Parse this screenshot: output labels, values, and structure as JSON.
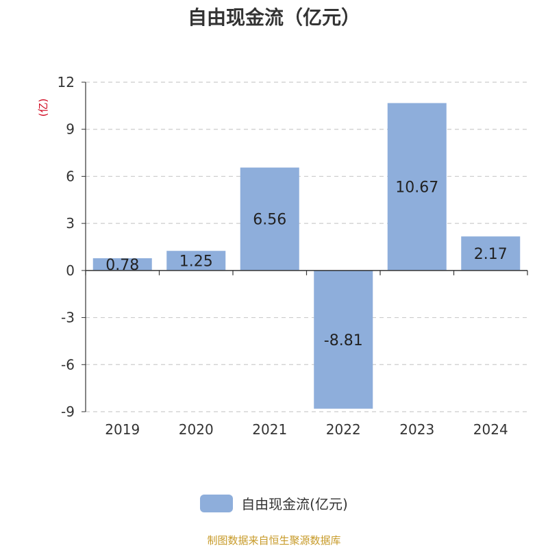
{
  "chart_data": {
    "type": "bar",
    "title": "自由现金流（亿元）",
    "ylabel": "(亿)",
    "categories": [
      "2019",
      "2020",
      "2021",
      "2022",
      "2023",
      "2024"
    ],
    "series": [
      {
        "name": "自由现金流(亿元)",
        "values": [
          0.78,
          1.25,
          6.56,
          -8.81,
          10.67,
          2.17
        ]
      }
    ],
    "data_labels": [
      "0.78",
      "1.25",
      "6.56",
      "-8.81",
      "10.67",
      "2.17"
    ],
    "ylim": [
      -9,
      12
    ],
    "yticks": [
      12,
      9,
      6,
      3,
      0,
      -3,
      -6,
      -9
    ],
    "ytick_labels": [
      "12",
      "9",
      "6",
      "3",
      "0",
      "-3",
      "-6",
      "-9"
    ],
    "grid": true,
    "legend_position": "bottom",
    "colors": {
      "bar": "#8eaedb",
      "grid": "#cccccc",
      "axis": "#333333",
      "ylabel": "#d0021b"
    }
  },
  "source_note": "制图数据来自恒生聚源数据库"
}
